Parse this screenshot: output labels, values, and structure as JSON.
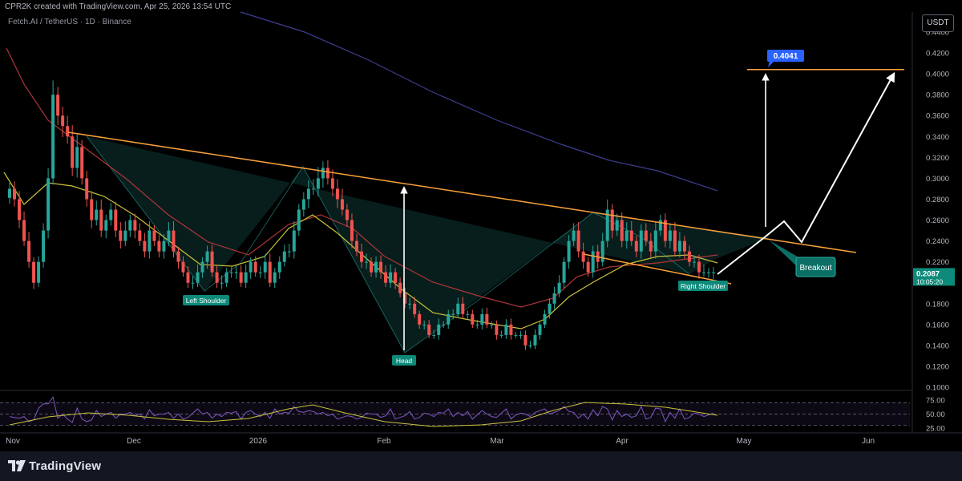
{
  "header": {
    "credit": "CPR2K created with TradingView.com, Apr 25, 2026 13:54 UTC",
    "symbol": "Fetch.AI  /  TetherUS · 1D · Binance",
    "currency_button": "USDT"
  },
  "footer": {
    "brand": "TradingView"
  },
  "colors": {
    "background": "#000000",
    "up": "#26a69a",
    "down": "#ef5350",
    "trendline": "#f7a13b",
    "ma_yellow": "#c8c23a",
    "ma_red": "#b0353a",
    "ma_blue": "#3d3f8f",
    "rsi": "#7e57c2",
    "label_teal": "#0e8a7a",
    "target_label": "#2962ff"
  },
  "chart_data": {
    "type": "candlestick",
    "title": "Fetch.AI / TetherUS · 1D · Binance",
    "price_ticks": [
      "0.4400",
      "0.4200",
      "0.4000",
      "0.3800",
      "0.3600",
      "0.3400",
      "0.3200",
      "0.3000",
      "0.2800",
      "0.2600",
      "0.2400",
      "0.2200",
      "0.2000",
      "0.1800",
      "0.1600",
      "0.1400",
      "0.1200",
      "0.1000"
    ],
    "ylim": [
      0.1,
      0.45
    ],
    "time_ticks": [
      "Nov",
      "Dec",
      "2026",
      "Feb",
      "Mar",
      "Apr",
      "May",
      "Jun"
    ],
    "last_price": "0.2087",
    "countdown": "10:05:20",
    "target_price": "0.4041",
    "rsi_ticks": [
      "75.00",
      "50.00",
      "25.00"
    ],
    "pattern_labels": [
      "Left Shoulder",
      "Head",
      "Right Shoulder",
      "Breakout"
    ],
    "key_prices": [
      0.41,
      0.26,
      0.195,
      0.295,
      0.305,
      0.135,
      0.25,
      0.27,
      0.21,
      0.24,
      0.4041
    ],
    "close_series": [
      0.29,
      0.28,
      0.26,
      0.24,
      0.22,
      0.2,
      0.22,
      0.25,
      0.3,
      0.38,
      0.36,
      0.35,
      0.34,
      0.31,
      0.33,
      0.3,
      0.28,
      0.26,
      0.27,
      0.25,
      0.26,
      0.27,
      0.25,
      0.24,
      0.25,
      0.26,
      0.25,
      0.24,
      0.23,
      0.25,
      0.24,
      0.23,
      0.24,
      0.25,
      0.23,
      0.22,
      0.21,
      0.2,
      0.2,
      0.21,
      0.22,
      0.23,
      0.21,
      0.2,
      0.2,
      0.21,
      0.21,
      0.21,
      0.2,
      0.21,
      0.22,
      0.21,
      0.21,
      0.22,
      0.2,
      0.21,
      0.22,
      0.23,
      0.23,
      0.25,
      0.27,
      0.28,
      0.29,
      0.29,
      0.3,
      0.31,
      0.3,
      0.29,
      0.28,
      0.27,
      0.26,
      0.24,
      0.23,
      0.22,
      0.22,
      0.21,
      0.22,
      0.21,
      0.2,
      0.21,
      0.2,
      0.19,
      0.18,
      0.18,
      0.17,
      0.16,
      0.16,
      0.15,
      0.15,
      0.16,
      0.16,
      0.17,
      0.17,
      0.18,
      0.17,
      0.17,
      0.16,
      0.16,
      0.17,
      0.16,
      0.16,
      0.15,
      0.15,
      0.16,
      0.15,
      0.15,
      0.15,
      0.14,
      0.14,
      0.15,
      0.16,
      0.17,
      0.18,
      0.19,
      0.2,
      0.22,
      0.24,
      0.25,
      0.23,
      0.22,
      0.21,
      0.23,
      0.22,
      0.24,
      0.27,
      0.25,
      0.26,
      0.24,
      0.25,
      0.24,
      0.23,
      0.25,
      0.24,
      0.23,
      0.25,
      0.26,
      0.24,
      0.25,
      0.23,
      0.24,
      0.23,
      0.22,
      0.22,
      0.21,
      0.21,
      0.21,
      0.21
    ]
  }
}
